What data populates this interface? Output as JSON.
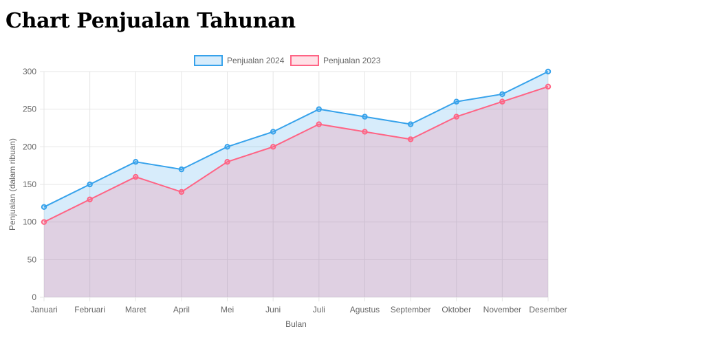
{
  "page": {
    "title": "Chart Penjualan Tahunan"
  },
  "chart_data": {
    "type": "area",
    "categories": [
      "Januari",
      "Februari",
      "Maret",
      "April",
      "Mei",
      "Juni",
      "Juli",
      "Agustus",
      "September",
      "Oktober",
      "November",
      "Desember"
    ],
    "series": [
      {
        "name": "Penjualan 2024",
        "values": [
          120,
          150,
          180,
          170,
          200,
          220,
          250,
          240,
          230,
          260,
          270,
          300
        ],
        "line_color": "#36a2eb",
        "fill_color": "rgba(54, 162, 235, 0.2)"
      },
      {
        "name": "Penjualan 2023",
        "values": [
          100,
          130,
          160,
          140,
          180,
          200,
          230,
          220,
          210,
          240,
          260,
          280
        ],
        "line_color": "#ff6384",
        "fill_color": "rgba(255, 99, 132, 0.2)"
      }
    ],
    "xlabel": "Bulan",
    "ylabel": "Penjualan (dalam ribuan)",
    "ylim": [
      0,
      300
    ],
    "yticks": [
      0,
      50,
      100,
      150,
      200,
      250,
      300
    ],
    "grid": true,
    "legend": "top"
  }
}
